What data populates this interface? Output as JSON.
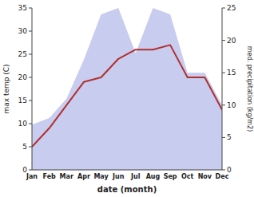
{
  "chart_data": {
    "type": "line",
    "categories": [
      "Jan",
      "Feb",
      "Mar",
      "Apr",
      "May",
      "Jun",
      "Jul",
      "Aug",
      "Sep",
      "Oct",
      "Nov",
      "Dec"
    ],
    "series": [
      {
        "type": "area",
        "axis": "y2",
        "color": "#c8ccee",
        "values": [
          7,
          8,
          11,
          17,
          24,
          25,
          18,
          25,
          24,
          15,
          15,
          10
        ]
      },
      {
        "type": "line",
        "color": "#b03030",
        "values": [
          5,
          9,
          14,
          19,
          20,
          24,
          26,
          26,
          27,
          20,
          20,
          13
        ]
      }
    ],
    "xlabel": "date (month)",
    "ylabel": "max temp (C)",
    "y2label": "med. precipitation (kg/m2)",
    "ylim": [
      0,
      35
    ],
    "yticks": [
      0,
      5,
      10,
      15,
      20,
      25,
      30,
      35
    ],
    "y2lim": [
      0,
      25
    ],
    "y2ticks": [
      0,
      5,
      10,
      15,
      20,
      25
    ],
    "grid": false
  }
}
